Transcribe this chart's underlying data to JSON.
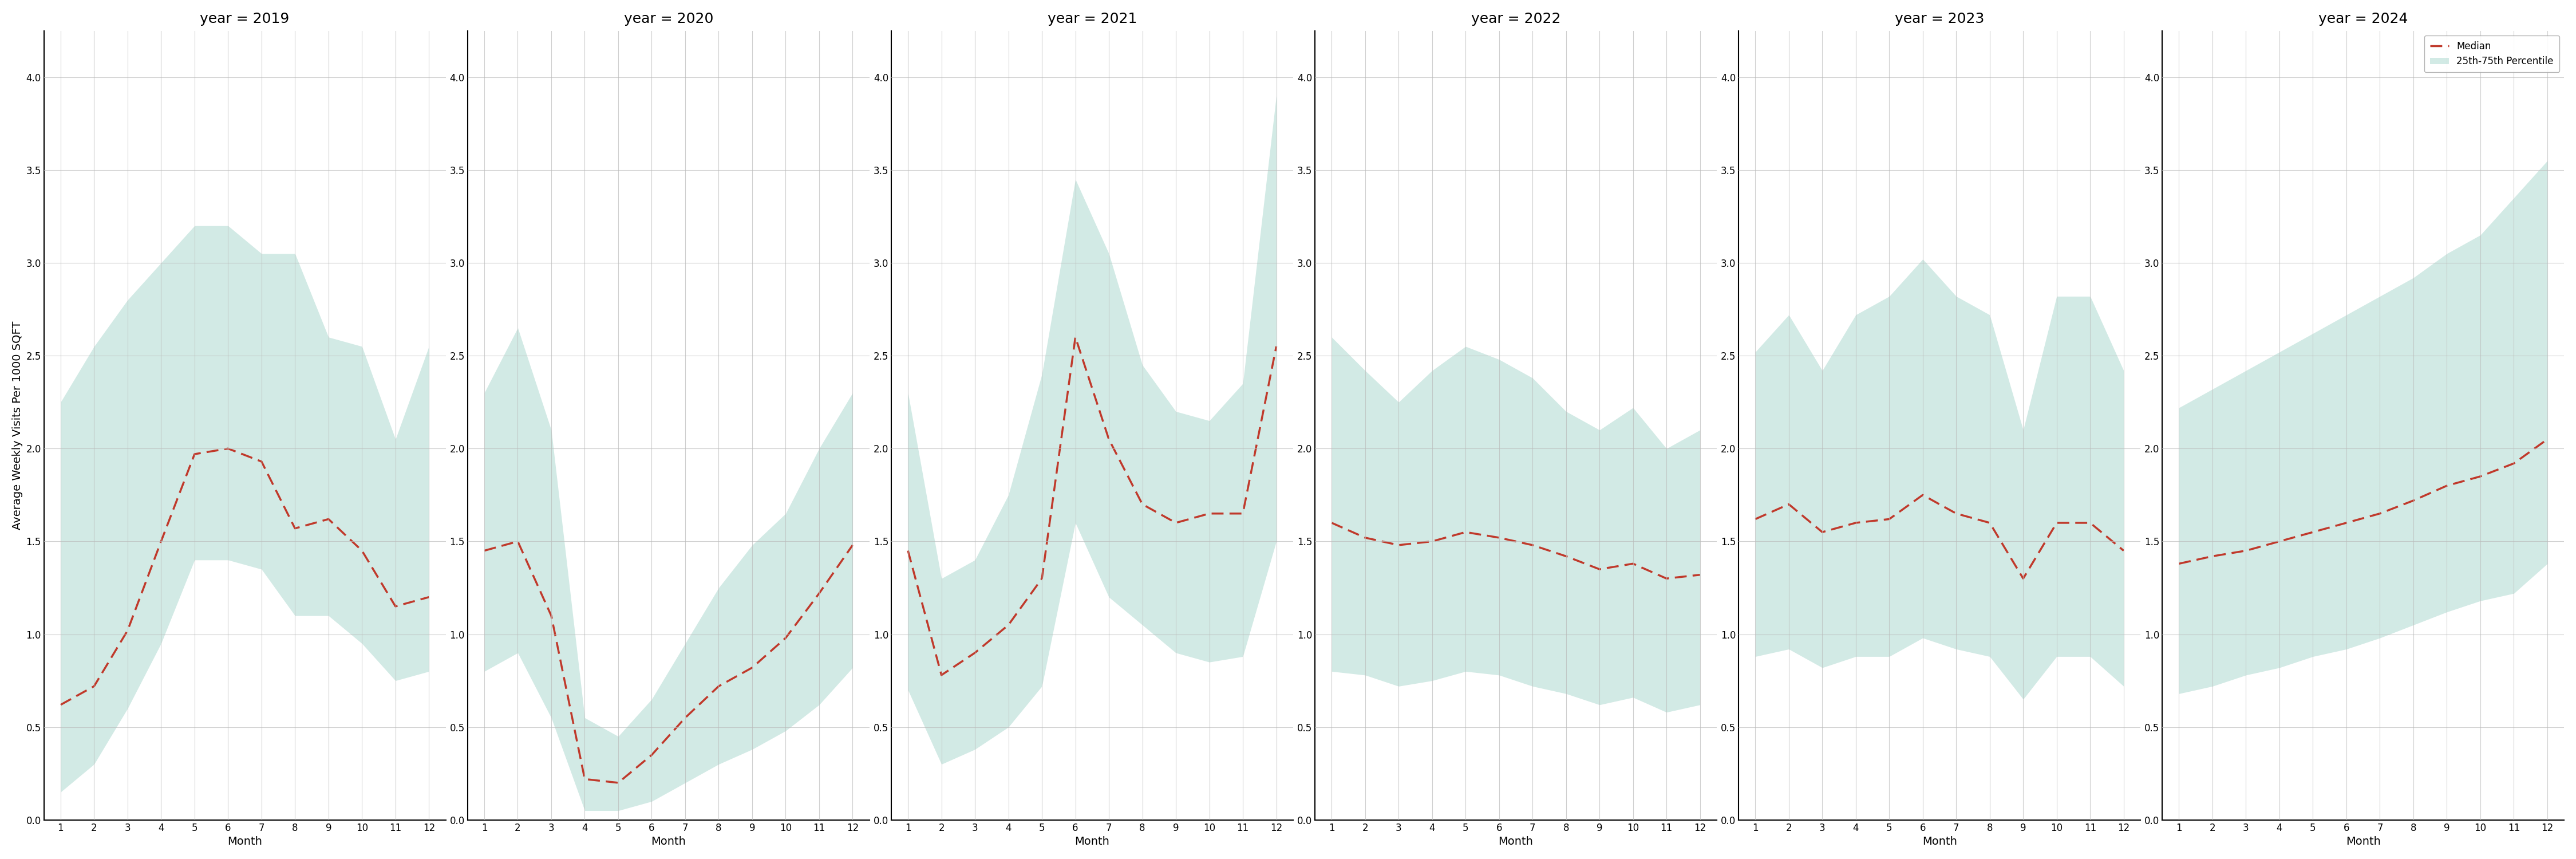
{
  "years": [
    2019,
    2020,
    2021,
    2022,
    2023,
    2024
  ],
  "months": [
    1,
    2,
    3,
    4,
    5,
    6,
    7,
    8,
    9,
    10,
    11,
    12
  ],
  "median": {
    "2019": [
      0.62,
      0.72,
      1.02,
      1.5,
      1.97,
      2.0,
      1.93,
      1.57,
      1.62,
      1.45,
      1.15,
      1.2
    ],
    "2020": [
      1.45,
      1.5,
      1.1,
      0.22,
      0.2,
      0.35,
      0.55,
      0.72,
      0.82,
      0.98,
      1.22,
      1.48
    ],
    "2021": [
      1.45,
      0.78,
      0.9,
      1.05,
      1.3,
      2.6,
      2.05,
      1.7,
      1.6,
      1.65,
      1.65,
      2.55
    ],
    "2022": [
      1.6,
      1.52,
      1.48,
      1.5,
      1.55,
      1.52,
      1.48,
      1.42,
      1.35,
      1.38,
      1.3,
      1.32
    ],
    "2023": [
      1.62,
      1.7,
      1.55,
      1.6,
      1.62,
      1.75,
      1.65,
      1.6,
      1.3,
      1.6,
      1.6,
      1.45
    ],
    "2024": [
      1.38,
      1.42,
      1.45,
      1.5,
      1.55,
      1.6,
      1.65,
      1.72,
      1.8,
      1.85,
      1.92,
      2.05
    ]
  },
  "q25": {
    "2019": [
      0.15,
      0.3,
      0.6,
      0.95,
      1.4,
      1.4,
      1.35,
      1.1,
      1.1,
      0.95,
      0.75,
      0.8
    ],
    "2020": [
      0.8,
      0.9,
      0.55,
      0.05,
      0.05,
      0.1,
      0.2,
      0.3,
      0.38,
      0.48,
      0.62,
      0.82
    ],
    "2021": [
      0.7,
      0.3,
      0.38,
      0.5,
      0.72,
      1.6,
      1.2,
      1.05,
      0.9,
      0.85,
      0.88,
      1.5
    ],
    "2022": [
      0.8,
      0.78,
      0.72,
      0.75,
      0.8,
      0.78,
      0.72,
      0.68,
      0.62,
      0.66,
      0.58,
      0.62
    ],
    "2023": [
      0.88,
      0.92,
      0.82,
      0.88,
      0.88,
      0.98,
      0.92,
      0.88,
      0.65,
      0.88,
      0.88,
      0.72
    ],
    "2024": [
      0.68,
      0.72,
      0.78,
      0.82,
      0.88,
      0.92,
      0.98,
      1.05,
      1.12,
      1.18,
      1.22,
      1.38
    ]
  },
  "q75": {
    "2019": [
      2.25,
      2.55,
      2.8,
      3.0,
      3.2,
      3.2,
      3.05,
      3.05,
      2.6,
      2.55,
      2.05,
      2.55
    ],
    "2020": [
      2.3,
      2.65,
      2.1,
      0.55,
      0.45,
      0.65,
      0.95,
      1.25,
      1.48,
      1.65,
      2.0,
      2.3
    ],
    "2021": [
      2.3,
      1.3,
      1.4,
      1.75,
      2.4,
      3.45,
      3.05,
      2.45,
      2.2,
      2.15,
      2.35,
      3.9
    ],
    "2022": [
      2.6,
      2.42,
      2.25,
      2.42,
      2.55,
      2.48,
      2.38,
      2.2,
      2.1,
      2.22,
      2.0,
      2.1
    ],
    "2023": [
      2.52,
      2.72,
      2.42,
      2.72,
      2.82,
      3.02,
      2.82,
      2.72,
      2.1,
      2.82,
      2.82,
      2.42
    ],
    "2024": [
      2.22,
      2.32,
      2.42,
      2.52,
      2.62,
      2.72,
      2.82,
      2.92,
      3.05,
      3.15,
      3.35,
      3.55
    ]
  },
  "fill_color": "#aed9d0",
  "fill_alpha": 0.55,
  "line_color": "#c0392b",
  "line_style": "--",
  "line_width": 2.5,
  "ylabel": "Average Weekly Visits Per 1000 SQFT",
  "xlabel": "Month",
  "ylim": [
    0.0,
    4.25
  ],
  "yticks": [
    0.0,
    0.5,
    1.0,
    1.5,
    2.0,
    2.5,
    3.0,
    3.5,
    4.0
  ],
  "xticks": [
    1,
    2,
    3,
    4,
    5,
    6,
    7,
    8,
    9,
    10,
    11,
    12
  ],
  "grid_color": "#bbbbbb",
  "grid_alpha": 0.7,
  "background_color": "#ffffff",
  "legend_labels": [
    "Median",
    "25th-75th Percentile"
  ],
  "title_prefix": "year = ",
  "title_fontsize": 18,
  "label_fontsize": 14,
  "tick_fontsize": 12
}
